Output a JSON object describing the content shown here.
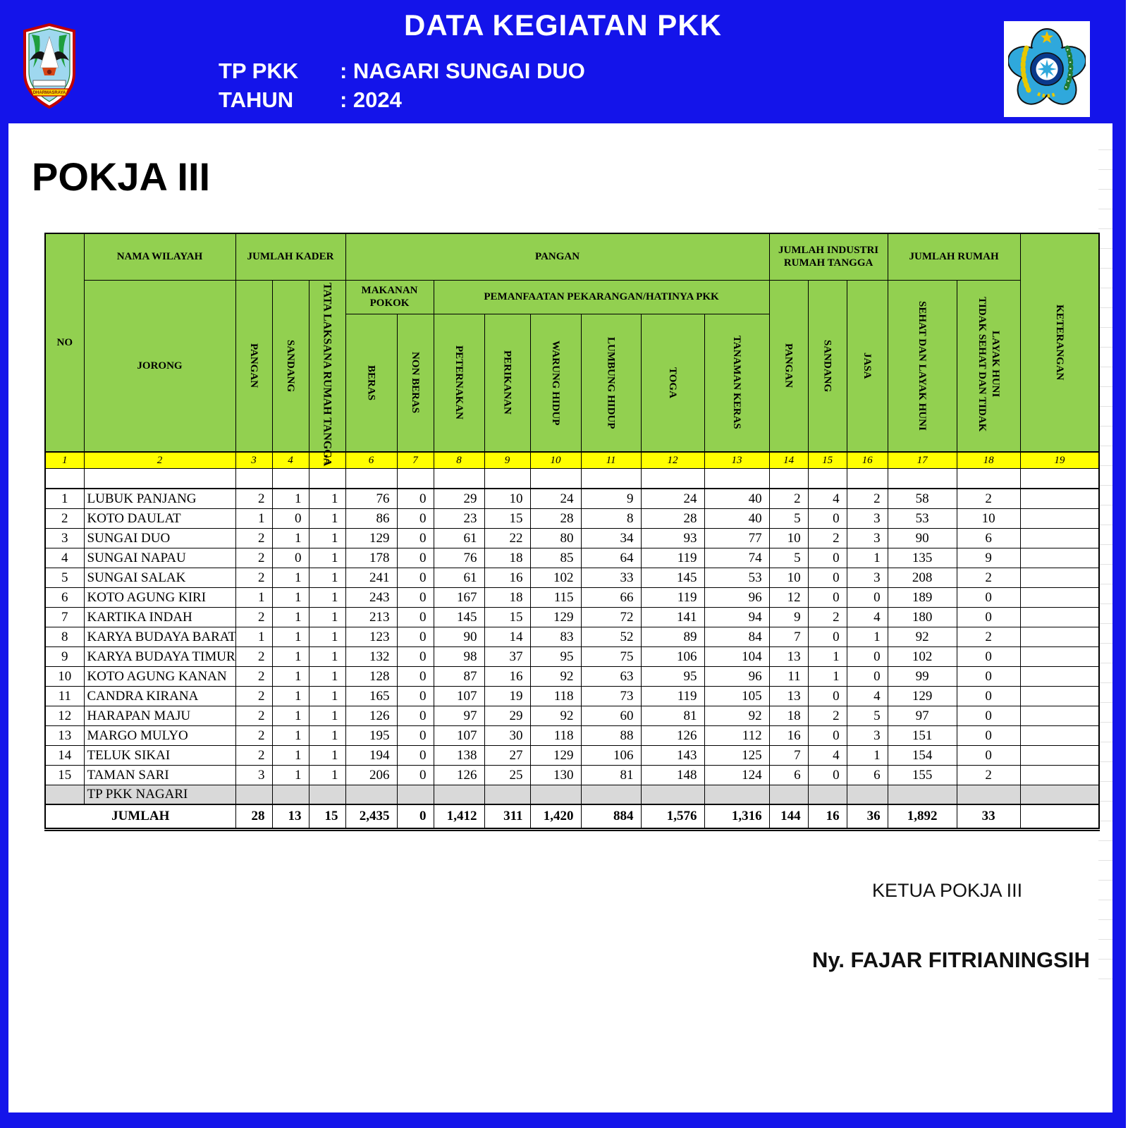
{
  "header": {
    "title": "DATA KEGIATAN PKK",
    "tp_pkk_label": "TP PKK",
    "tp_pkk_value": ": NAGARI SUNGAI DUO",
    "tahun_label": "TAHUN",
    "tahun_value": ": 2024",
    "left_logo": {
      "name": "dharmasraya-crest",
      "banner_text": "DHARMASRAYA"
    },
    "right_logo": {
      "name": "pkk-logo"
    }
  },
  "section_title": "POKJA III",
  "table": {
    "header": {
      "no": "NO",
      "nama_wilayah": "NAMA WILAYAH",
      "jorong": "JORONG",
      "jumlah_kader": "JUMLAH KADER",
      "kader_pangan": "PANGAN",
      "kader_sandang": "SANDANG",
      "kader_tata_laksana": "TATA LAKSANA RUMAH TANGGA",
      "pangan_group": "PANGAN",
      "makanan_pokok": "MAKANAN POKOK",
      "beras": "BERAS",
      "non_beras": "NON BERAS",
      "pemanfaatan": "PEMANFAATAN PEKARANGAN/HATINYA PKK",
      "peternakan": "PETERNAKAN",
      "perikanan": "PERIKANAN",
      "warung_hidup": "WARUNG HIDUP",
      "lumbung_hidup": "LUMBUNG HIDUP",
      "toga": "TOGA",
      "tanaman_keras": "TANAMAN KERAS",
      "industri_group": "JUMLAH INDUSTRI RUMAH TANGGA",
      "industri_pangan": "PANGAN",
      "industri_sandang": "SANDANG",
      "jasa": "JASA",
      "jumlah_rumah": "JUMLAH RUMAH",
      "sehat": "SEHAT DAN LAYAK HUNI",
      "tidak_sehat": "TIDAK SEHAT DAN TIDAK LAYAK HUNI",
      "keterangan": "KETERANGAN"
    },
    "col_numbers": [
      "1",
      "2",
      "3",
      "4",
      "5",
      "6",
      "7",
      "8",
      "9",
      "10",
      "11",
      "12",
      "13",
      "14",
      "15",
      "16",
      "17",
      "18",
      "19"
    ],
    "rows": [
      {
        "no": "1",
        "jorong": "LUBUK PANJANG",
        "values": [
          "2",
          "1",
          "1",
          "76",
          "0",
          "29",
          "10",
          "24",
          "9",
          "24",
          "40",
          "2",
          "4",
          "2",
          "58",
          "2"
        ]
      },
      {
        "no": "2",
        "jorong": "KOTO DAULAT",
        "values": [
          "1",
          "0",
          "1",
          "86",
          "0",
          "23",
          "15",
          "28",
          "8",
          "28",
          "40",
          "5",
          "0",
          "3",
          "53",
          "10"
        ]
      },
      {
        "no": "3",
        "jorong": "SUNGAI DUO",
        "values": [
          "2",
          "1",
          "1",
          "129",
          "0",
          "61",
          "22",
          "80",
          "34",
          "93",
          "77",
          "10",
          "2",
          "3",
          "90",
          "6"
        ]
      },
      {
        "no": "4",
        "jorong": "SUNGAI NAPAU",
        "values": [
          "2",
          "0",
          "1",
          "178",
          "0",
          "76",
          "18",
          "85",
          "64",
          "119",
          "74",
          "5",
          "0",
          "1",
          "135",
          "9"
        ]
      },
      {
        "no": "5",
        "jorong": "SUNGAI SALAK",
        "values": [
          "2",
          "1",
          "1",
          "241",
          "0",
          "61",
          "16",
          "102",
          "33",
          "145",
          "53",
          "10",
          "0",
          "3",
          "208",
          "2"
        ]
      },
      {
        "no": "6",
        "jorong": "KOTO AGUNG KIRI",
        "values": [
          "1",
          "1",
          "1",
          "243",
          "0",
          "167",
          "18",
          "115",
          "66",
          "119",
          "96",
          "12",
          "0",
          "0",
          "189",
          "0"
        ]
      },
      {
        "no": "7",
        "jorong": "KARTIKA INDAH",
        "values": [
          "2",
          "1",
          "1",
          "213",
          "0",
          "145",
          "15",
          "129",
          "72",
          "141",
          "94",
          "9",
          "2",
          "4",
          "180",
          "0"
        ]
      },
      {
        "no": "8",
        "jorong": "KARYA BUDAYA BARAT",
        "values": [
          "1",
          "1",
          "1",
          "123",
          "0",
          "90",
          "14",
          "83",
          "52",
          "89",
          "84",
          "7",
          "0",
          "1",
          "92",
          "2"
        ]
      },
      {
        "no": "9",
        "jorong": "KARYA BUDAYA TIMUR",
        "values": [
          "2",
          "1",
          "1",
          "132",
          "0",
          "98",
          "37",
          "95",
          "75",
          "106",
          "104",
          "13",
          "1",
          "0",
          "102",
          "0"
        ]
      },
      {
        "no": "10",
        "jorong": "KOTO AGUNG KANAN",
        "values": [
          "2",
          "1",
          "1",
          "128",
          "0",
          "87",
          "16",
          "92",
          "63",
          "95",
          "96",
          "11",
          "1",
          "0",
          "99",
          "0"
        ]
      },
      {
        "no": "11",
        "jorong": "CANDRA KIRANA",
        "values": [
          "2",
          "1",
          "1",
          "165",
          "0",
          "107",
          "19",
          "118",
          "73",
          "119",
          "105",
          "13",
          "0",
          "4",
          "129",
          "0"
        ]
      },
      {
        "no": "12",
        "jorong": "HARAPAN MAJU",
        "values": [
          "2",
          "1",
          "1",
          "126",
          "0",
          "97",
          "29",
          "92",
          "60",
          "81",
          "92",
          "18",
          "2",
          "5",
          "97",
          "0"
        ]
      },
      {
        "no": "13",
        "jorong": "MARGO MULYO",
        "values": [
          "2",
          "1",
          "1",
          "195",
          "0",
          "107",
          "30",
          "118",
          "88",
          "126",
          "112",
          "16",
          "0",
          "3",
          "151",
          "0"
        ]
      },
      {
        "no": "14",
        "jorong": "TELUK SIKAI",
        "values": [
          "2",
          "1",
          "1",
          "194",
          "0",
          "138",
          "27",
          "129",
          "106",
          "143",
          "125",
          "7",
          "4",
          "1",
          "154",
          "0"
        ]
      },
      {
        "no": "15",
        "jorong": "TAMAN SARI",
        "values": [
          "3",
          "1",
          "1",
          "206",
          "0",
          "126",
          "25",
          "130",
          "81",
          "148",
          "124",
          "6",
          "0",
          "6",
          "155",
          "2"
        ]
      }
    ],
    "tp_pkk_nagari_label": "TP PKK NAGARI",
    "jumlah_label": "JUMLAH",
    "totals": [
      "28",
      "13",
      "15",
      "2,435",
      "0",
      "1,412",
      "311",
      "1,420",
      "884",
      "1,576",
      "1,316",
      "144",
      "16",
      "36",
      "1,892",
      "33"
    ]
  },
  "signature": {
    "role": "KETUA POKJA III",
    "name": "Ny. FAJAR FITRIANINGSIH"
  },
  "colors": {
    "frame_blue": "#1414ea",
    "header_green": "#92d050",
    "row_number_yellow": "#ffff00",
    "muted_gray": "#d9d9d9",
    "text_white": "#ffffff",
    "text_black": "#000000"
  }
}
